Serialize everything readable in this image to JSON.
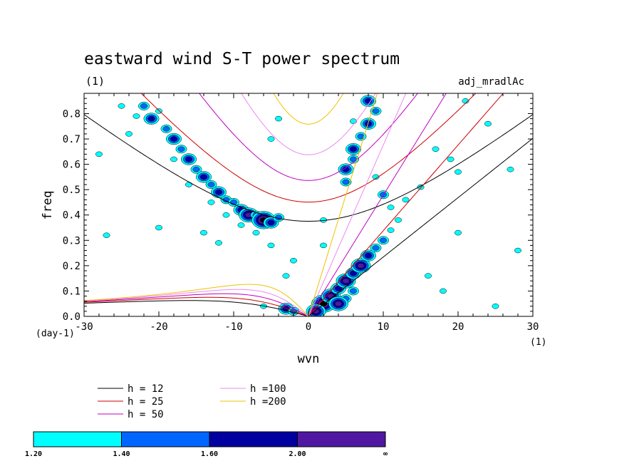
{
  "chart_data": {
    "type": "contour",
    "title": "eastward wind S-T power spectrum",
    "subtitle": "(1)",
    "run_label": "adj_mradlAc",
    "xlabel": "wvn",
    "ylabel": "freq",
    "x_unit": "(1)",
    "y_unit": "(day-1)",
    "xlim": [
      -30,
      30
    ],
    "ylim": [
      0,
      0.88
    ],
    "x_ticks": [
      -30,
      -20,
      -10,
      0,
      10,
      20,
      30
    ],
    "x_tick_labels": [
      "-30",
      "-20",
      "-10",
      "0",
      "10",
      "20",
      "30"
    ],
    "y_ticks": [
      0,
      0.1,
      0.2,
      0.3,
      0.4,
      0.5,
      0.6,
      0.7,
      0.8
    ],
    "y_tick_labels": [
      "0.0",
      "0.1",
      "0.2",
      "0.3",
      "0.4",
      "0.5",
      "0.6",
      "0.7",
      "0.8"
    ],
    "dispersion_curves": [
      {
        "label": "h = 12",
        "h": 12,
        "color": "#000000"
      },
      {
        "label": "h = 25",
        "h": 25,
        "color": "#cc0000"
      },
      {
        "label": "h = 50",
        "h": 50,
        "color": "#c000c0"
      },
      {
        "label": "h =100",
        "h": 100,
        "color": "#ee88ee"
      },
      {
        "label": "h =200",
        "h": 200,
        "color": "#f0c000"
      }
    ],
    "colorbar": {
      "levels": [
        "1.20",
        "1.40",
        "1.60",
        "2.00",
        "∞"
      ],
      "colors": [
        "#00ffff",
        "#0066ff",
        "#0000a0",
        "#5018a0"
      ]
    },
    "power_blobs": [
      {
        "x": -22,
        "y": 0.83,
        "level": 1
      },
      {
        "x": -21,
        "y": 0.78,
        "level": 2
      },
      {
        "x": -19,
        "y": 0.74,
        "level": 1
      },
      {
        "x": -18,
        "y": 0.7,
        "level": 2
      },
      {
        "x": -17,
        "y": 0.66,
        "level": 1
      },
      {
        "x": -16,
        "y": 0.62,
        "level": 2
      },
      {
        "x": -15,
        "y": 0.58,
        "level": 1
      },
      {
        "x": -14,
        "y": 0.55,
        "level": 2
      },
      {
        "x": -13,
        "y": 0.52,
        "level": 1
      },
      {
        "x": -12,
        "y": 0.49,
        "level": 2
      },
      {
        "x": -11,
        "y": 0.46,
        "level": 1
      },
      {
        "x": -10,
        "y": 0.45,
        "level": 1
      },
      {
        "x": -9,
        "y": 0.42,
        "level": 2
      },
      {
        "x": -8,
        "y": 0.4,
        "level": 3
      },
      {
        "x": -7,
        "y": 0.4,
        "level": 1
      },
      {
        "x": -6,
        "y": 0.38,
        "level": 4
      },
      {
        "x": -5,
        "y": 0.37,
        "level": 2
      },
      {
        "x": -4,
        "y": 0.39,
        "level": 1
      },
      {
        "x": -23,
        "y": 0.79,
        "level": 0
      },
      {
        "x": -20,
        "y": 0.81,
        "level": 0
      },
      {
        "x": -24,
        "y": 0.72,
        "level": 0
      },
      {
        "x": -18,
        "y": 0.62,
        "level": 0
      },
      {
        "x": -16,
        "y": 0.52,
        "level": 0
      },
      {
        "x": -13,
        "y": 0.45,
        "level": 0
      },
      {
        "x": -11,
        "y": 0.4,
        "level": 0
      },
      {
        "x": -9,
        "y": 0.36,
        "level": 0
      },
      {
        "x": -7,
        "y": 0.33,
        "level": 0
      },
      {
        "x": 8,
        "y": 0.85,
        "level": 2
      },
      {
        "x": 9,
        "y": 0.81,
        "level": 1
      },
      {
        "x": 8,
        "y": 0.76,
        "level": 2
      },
      {
        "x": 7,
        "y": 0.71,
        "level": 1
      },
      {
        "x": 6,
        "y": 0.66,
        "level": 2
      },
      {
        "x": 6,
        "y": 0.62,
        "level": 1
      },
      {
        "x": 5,
        "y": 0.58,
        "level": 2
      },
      {
        "x": 5,
        "y": 0.53,
        "level": 1
      },
      {
        "x": 9,
        "y": 0.55,
        "level": 0
      },
      {
        "x": 10,
        "y": 0.48,
        "level": 1
      },
      {
        "x": 11,
        "y": 0.43,
        "level": 0
      },
      {
        "x": 2,
        "y": 0.05,
        "level": 4
      },
      {
        "x": 3,
        "y": 0.08,
        "level": 3
      },
      {
        "x": 4,
        "y": 0.11,
        "level": 2
      },
      {
        "x": 5,
        "y": 0.14,
        "level": 3
      },
      {
        "x": 6,
        "y": 0.17,
        "level": 2
      },
      {
        "x": 7,
        "y": 0.2,
        "level": 3
      },
      {
        "x": 8,
        "y": 0.24,
        "level": 2
      },
      {
        "x": 9,
        "y": 0.27,
        "level": 1
      },
      {
        "x": 10,
        "y": 0.3,
        "level": 1
      },
      {
        "x": 11,
        "y": 0.34,
        "level": 0
      },
      {
        "x": 12,
        "y": 0.38,
        "level": 0
      },
      {
        "x": 1,
        "y": 0.02,
        "level": 3
      },
      {
        "x": 5,
        "y": 0.07,
        "level": 1
      },
      {
        "x": 4,
        "y": 0.05,
        "level": 3
      },
      {
        "x": 6,
        "y": 0.1,
        "level": 1
      },
      {
        "x": -3,
        "y": 0.03,
        "level": 2
      },
      {
        "x": -2,
        "y": 0.02,
        "level": 1
      },
      {
        "x": -6,
        "y": 0.04,
        "level": 0
      },
      {
        "x": -25,
        "y": 0.83,
        "level": 0
      },
      {
        "x": -28,
        "y": 0.64,
        "level": 0
      },
      {
        "x": -27,
        "y": 0.32,
        "level": 0
      },
      {
        "x": -20,
        "y": 0.35,
        "level": 0
      },
      {
        "x": -12,
        "y": 0.29,
        "level": 0
      },
      {
        "x": -14,
        "y": 0.33,
        "level": 0
      },
      {
        "x": -5,
        "y": 0.28,
        "level": 0
      },
      {
        "x": -2,
        "y": 0.22,
        "level": 0
      },
      {
        "x": -3,
        "y": 0.16,
        "level": 0
      },
      {
        "x": 2,
        "y": 0.38,
        "level": 0
      },
      {
        "x": 2,
        "y": 0.28,
        "level": 0
      },
      {
        "x": -5,
        "y": 0.7,
        "level": 0
      },
      {
        "x": -4,
        "y": 0.78,
        "level": 0
      },
      {
        "x": 6,
        "y": 0.77,
        "level": 0
      },
      {
        "x": 15,
        "y": 0.51,
        "level": 0
      },
      {
        "x": 17,
        "y": 0.66,
        "level": 0
      },
      {
        "x": 20,
        "y": 0.57,
        "level": 0
      },
      {
        "x": 21,
        "y": 0.85,
        "level": 0
      },
      {
        "x": 24,
        "y": 0.76,
        "level": 0
      },
      {
        "x": 27,
        "y": 0.58,
        "level": 0
      },
      {
        "x": 28,
        "y": 0.26,
        "level": 0
      },
      {
        "x": 25,
        "y": 0.04,
        "level": 0
      },
      {
        "x": 16,
        "y": 0.16,
        "level": 0
      },
      {
        "x": 20,
        "y": 0.33,
        "level": 0
      },
      {
        "x": 18,
        "y": 0.1,
        "level": 0
      },
      {
        "x": 13,
        "y": 0.46,
        "level": 0
      },
      {
        "x": 19,
        "y": 0.62,
        "level": 0
      }
    ]
  }
}
